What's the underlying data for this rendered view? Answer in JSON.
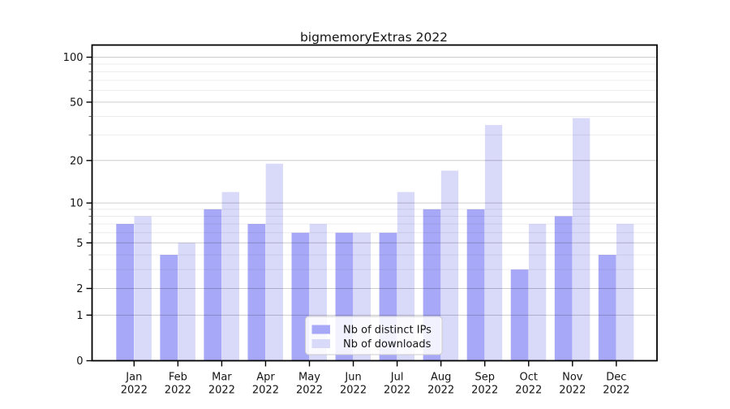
{
  "chart_data": {
    "type": "bar",
    "title": "bigmemoryExtras 2022",
    "categories": [
      "Jan",
      "Feb",
      "Mar",
      "Apr",
      "May",
      "Jun",
      "Jul",
      "Aug",
      "Sep",
      "Oct",
      "Nov",
      "Dec"
    ],
    "x_tick_year": "2022",
    "series": [
      {
        "name": "Nb of distinct IPs",
        "color": "#a8a8f8",
        "values": [
          7,
          4,
          9,
          7,
          6,
          6,
          6,
          9,
          9,
          3,
          8,
          4
        ]
      },
      {
        "name": "Nb of downloads",
        "color": "#d9d9f9",
        "values": [
          8,
          5,
          12,
          19,
          7,
          6,
          12,
          17,
          35,
          7,
          39,
          7
        ]
      }
    ],
    "xlabel": "",
    "ylabel": "",
    "y_scale": "log1p",
    "y_axis_ticks": [
      0,
      1,
      2,
      5,
      10,
      20,
      50,
      100
    ],
    "y_minor_gridlines": [
      3,
      4,
      6,
      7,
      8,
      9,
      30,
      40,
      60,
      70,
      80,
      90
    ],
    "ylim": [
      0,
      120
    ],
    "grid": true,
    "legend_position": "bottom-center"
  }
}
